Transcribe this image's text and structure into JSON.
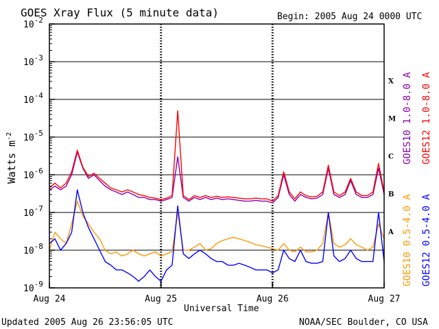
{
  "chart_data": {
    "type": "line",
    "title": "GOES Xray Flux (5 minute data)",
    "begin_label": "Begin:  2005 Aug 24 0000 UTC",
    "ylabel": "Watts m",
    "ylabel_sup": "-2",
    "xlabel": "Universal Time",
    "y_scale": "log",
    "ylim": [
      1e-09,
      0.01
    ],
    "y_ticks": [
      {
        "base": "10",
        "exp": "-9"
      },
      {
        "base": "10",
        "exp": "-8"
      },
      {
        "base": "10",
        "exp": "-7"
      },
      {
        "base": "10",
        "exp": "-6"
      },
      {
        "base": "10",
        "exp": "-5"
      },
      {
        "base": "10",
        "exp": "-4"
      },
      {
        "base": "10",
        "exp": "-3"
      },
      {
        "base": "10",
        "exp": "-2"
      }
    ],
    "x_range_days": [
      0,
      3
    ],
    "x_ticks": [
      "Aug 24",
      "Aug 25",
      "Aug 26",
      "Aug 27"
    ],
    "flare_classes": [
      {
        "label": "A",
        "level": 1e-08
      },
      {
        "label": "B",
        "level": 1e-07
      },
      {
        "label": "C",
        "level": 1e-06
      },
      {
        "label": "M",
        "level": 1e-05
      },
      {
        "label": "X",
        "level": 0.0001
      }
    ],
    "grid": true,
    "legend_placement": "right",
    "series": [
      {
        "name": "GOES10 0.5-4.0 A",
        "color": "#ff9900",
        "x": [
          0.0,
          0.05,
          0.1,
          0.15,
          0.2,
          0.25,
          0.3,
          0.35,
          0.4,
          0.45,
          0.5,
          0.55,
          0.6,
          0.65,
          0.7,
          0.75,
          0.8,
          0.85,
          0.9,
          0.95,
          1.0,
          1.05,
          1.1,
          1.15,
          1.2,
          1.25,
          1.3,
          1.35,
          1.4,
          1.45,
          1.5,
          1.55,
          1.6,
          1.65,
          1.7,
          1.75,
          1.8,
          1.85,
          1.9,
          1.95,
          2.0,
          2.05,
          2.1,
          2.15,
          2.2,
          2.25,
          2.3,
          2.35,
          2.4,
          2.45,
          2.5,
          2.55,
          2.6,
          2.65,
          2.7,
          2.75,
          2.8,
          2.85,
          2.9,
          2.95,
          3.0
        ],
        "values": [
          1e-08,
          3e-08,
          2e-08,
          1.5e-08,
          5e-08,
          2e-07,
          8e-08,
          5e-08,
          3e-08,
          2e-08,
          1e-08,
          8e-09,
          9e-09,
          7e-09,
          8e-09,
          1e-08,
          8e-09,
          7e-09,
          8e-09,
          9e-09,
          7e-09,
          8e-09,
          9e-09,
          1e-07,
          1e-08,
          1e-08,
          1.2e-08,
          1.5e-08,
          1e-08,
          1.1e-08,
          1.5e-08,
          1.8e-08,
          2e-08,
          2.2e-08,
          2e-08,
          1.8e-08,
          1.6e-08,
          1.4e-08,
          1.3e-08,
          1.2e-08,
          1.1e-08,
          1e-08,
          1.5e-08,
          1e-08,
          9e-09,
          1.2e-08,
          9e-09,
          9e-09,
          1e-08,
          1.5e-08,
          1e-07,
          1.5e-08,
          1.2e-08,
          1.4e-08,
          2e-08,
          1.4e-08,
          1.2e-08,
          1e-08,
          1.2e-08,
          5e-08,
          2e-08
        ]
      },
      {
        "name": "GOES12 0.5-4.0 A",
        "color": "#0000ff",
        "x": [
          0.0,
          0.05,
          0.1,
          0.15,
          0.2,
          0.25,
          0.3,
          0.35,
          0.4,
          0.45,
          0.5,
          0.55,
          0.6,
          0.65,
          0.7,
          0.75,
          0.8,
          0.85,
          0.9,
          0.95,
          1.0,
          1.05,
          1.1,
          1.15,
          1.2,
          1.25,
          1.3,
          1.35,
          1.4,
          1.45,
          1.5,
          1.55,
          1.6,
          1.65,
          1.7,
          1.75,
          1.8,
          1.85,
          1.9,
          1.95,
          2.0,
          2.05,
          2.1,
          2.15,
          2.2,
          2.25,
          2.3,
          2.35,
          2.4,
          2.45,
          2.5,
          2.55,
          2.6,
          2.65,
          2.7,
          2.75,
          2.8,
          2.85,
          2.9,
          2.95,
          3.0
        ],
        "values": [
          1.5e-08,
          2e-08,
          1e-08,
          1.5e-08,
          3e-08,
          4e-07,
          1e-07,
          4e-08,
          2e-08,
          1e-08,
          5e-09,
          4e-09,
          3e-09,
          3e-09,
          2.5e-09,
          2e-09,
          1.5e-09,
          2e-09,
          3e-09,
          2e-09,
          1.5e-09,
          3e-09,
          4e-09,
          1.5e-07,
          8e-09,
          6e-09,
          8e-09,
          1e-08,
          8e-09,
          6e-09,
          5e-09,
          5e-09,
          4e-09,
          4e-09,
          4.5e-09,
          4e-09,
          3.5e-09,
          3e-09,
          3e-09,
          3e-09,
          2.5e-09,
          3e-09,
          1e-08,
          6e-09,
          5e-09,
          1e-08,
          5e-09,
          4.5e-09,
          4.5e-09,
          5e-09,
          1e-07,
          7e-09,
          5e-09,
          6e-09,
          1e-08,
          6e-09,
          5e-09,
          5e-09,
          5e-09,
          1e-07,
          5e-09
        ]
      },
      {
        "name": "GOES10 1.0-8.0 A",
        "color": "#8800aa",
        "x": [
          0.0,
          0.05,
          0.1,
          0.15,
          0.2,
          0.25,
          0.3,
          0.35,
          0.4,
          0.45,
          0.5,
          0.55,
          0.6,
          0.65,
          0.7,
          0.75,
          0.8,
          0.85,
          0.9,
          0.95,
          1.0,
          1.05,
          1.1,
          1.15,
          1.2,
          1.25,
          1.3,
          1.35,
          1.4,
          1.45,
          1.5,
          1.55,
          1.6,
          1.65,
          1.7,
          1.75,
          1.8,
          1.85,
          1.9,
          1.95,
          2.0,
          2.05,
          2.1,
          2.15,
          2.2,
          2.25,
          2.3,
          2.35,
          2.4,
          2.45,
          2.5,
          2.55,
          2.6,
          2.65,
          2.7,
          2.75,
          2.8,
          2.85,
          2.9,
          2.95,
          3.0
        ],
        "values": [
          4e-07,
          5e-07,
          4e-07,
          5e-07,
          1e-06,
          4e-06,
          1.5e-06,
          8e-07,
          1e-06,
          7e-07,
          5e-07,
          4e-07,
          3.5e-07,
          3e-07,
          3.5e-07,
          3e-07,
          2.5e-07,
          2.5e-07,
          2.2e-07,
          2.2e-07,
          2e-07,
          2.2e-07,
          2.5e-07,
          3e-06,
          2.5e-07,
          2e-07,
          2.5e-07,
          2.2e-07,
          2.5e-07,
          2.2e-07,
          2.4e-07,
          2.2e-07,
          2.3e-07,
          2.2e-07,
          2.1e-07,
          2e-07,
          2e-07,
          2.1e-07,
          2e-07,
          2e-07,
          1.8e-07,
          2.5e-07,
          1e-06,
          3e-07,
          2e-07,
          3e-07,
          2.5e-07,
          2.3e-07,
          2.4e-07,
          3e-07,
          1.5e-06,
          3e-07,
          2.5e-07,
          3e-07,
          7e-07,
          3e-07,
          2.5e-07,
          2.5e-07,
          3e-07,
          1.5e-06,
          3e-07
        ]
      },
      {
        "name": "GOES12 1.0-8.0 A",
        "color": "#ff0000",
        "x": [
          0.0,
          0.05,
          0.1,
          0.15,
          0.2,
          0.25,
          0.3,
          0.35,
          0.4,
          0.45,
          0.5,
          0.55,
          0.6,
          0.65,
          0.7,
          0.75,
          0.8,
          0.85,
          0.9,
          0.95,
          1.0,
          1.05,
          1.1,
          1.15,
          1.2,
          1.25,
          1.3,
          1.35,
          1.4,
          1.45,
          1.5,
          1.55,
          1.6,
          1.65,
          1.7,
          1.75,
          1.8,
          1.85,
          1.9,
          1.95,
          2.0,
          2.05,
          2.1,
          2.15,
          2.2,
          2.25,
          2.3,
          2.35,
          2.4,
          2.45,
          2.5,
          2.55,
          2.6,
          2.65,
          2.7,
          2.75,
          2.8,
          2.85,
          2.9,
          2.95,
          3.0
        ],
        "values": [
          4.5e-07,
          6e-07,
          4.5e-07,
          6e-07,
          1.2e-06,
          4.5e-06,
          1.6e-06,
          9e-07,
          1.1e-06,
          8e-07,
          6e-07,
          4.5e-07,
          4e-07,
          3.5e-07,
          4e-07,
          3.5e-07,
          3e-07,
          2.8e-07,
          2.5e-07,
          2.4e-07,
          2.2e-07,
          2.4e-07,
          2.8e-07,
          5e-05,
          2.8e-07,
          2.2e-07,
          2.8e-07,
          2.5e-07,
          2.8e-07,
          2.5e-07,
          2.7e-07,
          2.5e-07,
          2.6e-07,
          2.5e-07,
          2.4e-07,
          2.3e-07,
          2.3e-07,
          2.4e-07,
          2.3e-07,
          2.3e-07,
          2e-07,
          2.8e-07,
          1.2e-06,
          3.5e-07,
          2.3e-07,
          3.5e-07,
          2.8e-07,
          2.6e-07,
          2.7e-07,
          3.5e-07,
          1.8e-06,
          3.5e-07,
          2.8e-07,
          3.5e-07,
          8e-07,
          3.5e-07,
          2.8e-07,
          2.8e-07,
          3.5e-07,
          2e-06,
          3.5e-07
        ]
      }
    ]
  },
  "footer": {
    "updated": "Updated 2005 Aug 26 23:56:05 UTC",
    "credit": "NOAA/SEC Boulder, CO USA"
  }
}
